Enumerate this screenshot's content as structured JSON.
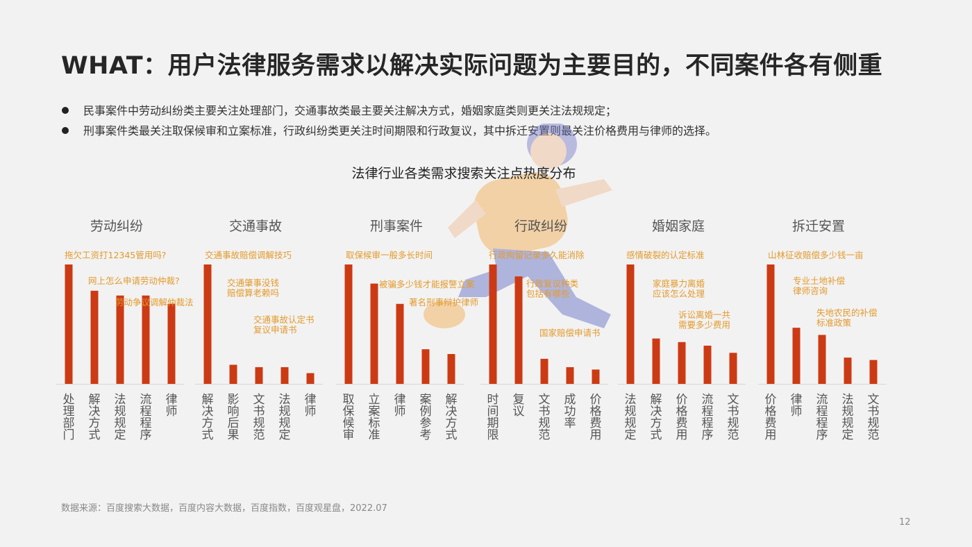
{
  "slide": {
    "title": "WHAT：用户法律服务需求以解决实际问题为主要目的，不同案件各有侧重",
    "bullets": [
      "民事案件中劳动纠纷类主要关注处理部门，交通事故类最主要关注解决方式，婚姻家庭类则更关注法规规定；",
      "刑事案件类最关注取保候审和立案标准，行政纠纷类更关注时间期限和行政复议，其中拆迁安置则最关注价格费用与律师的选择。"
    ],
    "source": "数据来源：百度搜索大数据，百度内容大数据，百度指数，百度观星盘，2022.07",
    "page_number": "12"
  },
  "colors": {
    "bar": "#cc3a14",
    "annotation": "#e39a2c",
    "axis_label": "#555555",
    "group_title": "#555555"
  },
  "chart_data": {
    "type": "bar",
    "title": "法律行业各类需求搜索关注点热度分布",
    "ylim": [
      0,
      100
    ],
    "groups": [
      {
        "name": "劳动纠纷",
        "categories": [
          "处理部门",
          "解决方式",
          "法规规定",
          "流程程序",
          "律师"
        ],
        "values": [
          100,
          78,
          74,
          74,
          67
        ],
        "annotations": [
          "拖欠工资打12345管用吗?",
          "网上怎么申请劳动仲裁?",
          "劳动争议调解仲裁法"
        ]
      },
      {
        "name": "交通事故",
        "categories": [
          "解决方式",
          "影响后果",
          "文书规范",
          "法规规定",
          "律师"
        ],
        "values": [
          100,
          16,
          14,
          14,
          9
        ],
        "annotations": [
          "交通事故赔偿调解技巧",
          "交通肇事没钱\n赔偿算老赖吗",
          "交通事故认定书\n复议申请书"
        ]
      },
      {
        "name": "刑事案件",
        "categories": [
          "取保候审",
          "立案标准",
          "律师",
          "案例参考",
          "解决方式"
        ],
        "values": [
          100,
          84,
          67,
          29,
          25
        ],
        "annotations": [
          "取保候审一般多长时间",
          "被骗多少钱才能报警立案",
          "著名刑事辩护律师"
        ]
      },
      {
        "name": "行政纠纷",
        "categories": [
          "时间期限",
          "复议",
          "文书规范",
          "成功率",
          "价格费用"
        ],
        "values": [
          100,
          90,
          21,
          14,
          12
        ],
        "annotations": [
          "行政拘留记录多久能消除",
          "行政复议种类\n包括有哪些",
          "国家赔偿申请书"
        ]
      },
      {
        "name": "婚姻家庭",
        "categories": [
          "法规规定",
          "解决方式",
          "价格费用",
          "流程程序",
          "文书规范"
        ],
        "values": [
          100,
          38,
          35,
          32,
          26
        ],
        "annotations": [
          "感情破裂的认定标准",
          "家庭暴力离婚\n应该怎么处理",
          "诉讼离婚一共\n需要多少费用"
        ]
      },
      {
        "name": "拆迁安置",
        "categories": [
          "价格费用",
          "律师",
          "流程程序",
          "法规规定",
          "文书规范"
        ],
        "values": [
          100,
          47,
          41,
          22,
          20
        ],
        "annotations": [
          "山林征收赔偿多少钱一亩",
          "专业土地补偿\n律师咨询",
          "失地农民的补偿\n标准政策"
        ]
      }
    ]
  }
}
